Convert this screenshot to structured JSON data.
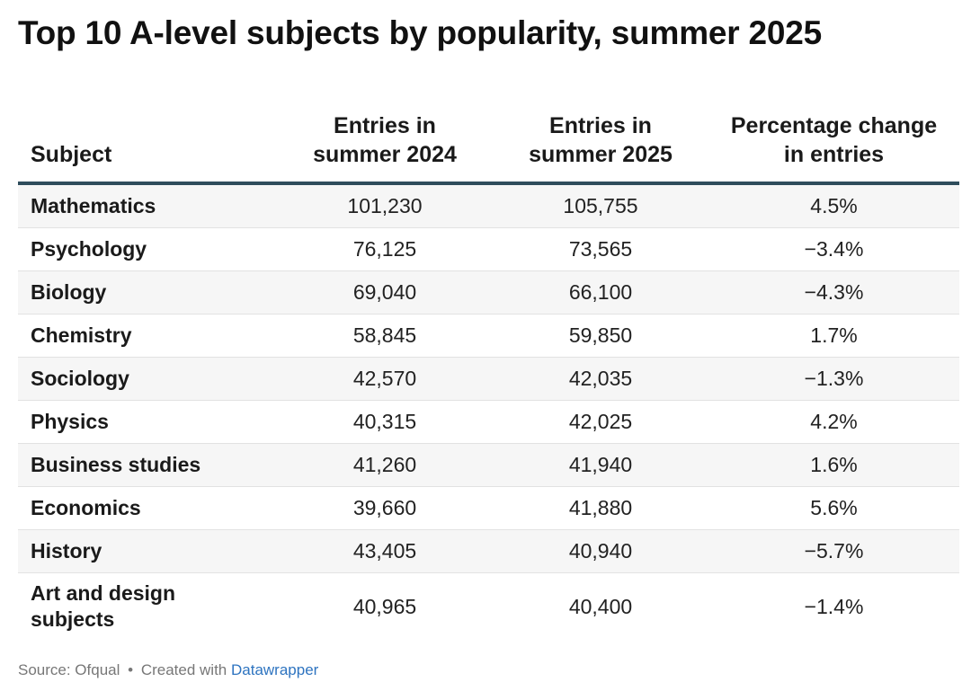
{
  "title": "Top 10 A-level subjects by popularity, summer 2025",
  "table": {
    "headers": {
      "subject": [
        "Subject"
      ],
      "entries_2024": [
        "Entries in",
        "summer 2024"
      ],
      "entries_2025": [
        "Entries in",
        "summer 2025"
      ],
      "change": [
        "Percentage change",
        "in entries"
      ]
    },
    "rows": [
      {
        "subject": [
          "Mathematics"
        ],
        "entries_2024": "101,230",
        "entries_2025": "105,755",
        "change": "4.5%"
      },
      {
        "subject": [
          "Psychology"
        ],
        "entries_2024": "76,125",
        "entries_2025": "73,565",
        "change": "−3.4%"
      },
      {
        "subject": [
          "Biology"
        ],
        "entries_2024": "69,040",
        "entries_2025": "66,100",
        "change": "−4.3%"
      },
      {
        "subject": [
          "Chemistry"
        ],
        "entries_2024": "58,845",
        "entries_2025": "59,850",
        "change": "1.7%"
      },
      {
        "subject": [
          "Sociology"
        ],
        "entries_2024": "42,570",
        "entries_2025": "42,035",
        "change": "−1.3%"
      },
      {
        "subject": [
          "Physics"
        ],
        "entries_2024": "40,315",
        "entries_2025": "42,025",
        "change": "4.2%"
      },
      {
        "subject": [
          "Business studies"
        ],
        "entries_2024": "41,260",
        "entries_2025": "41,940",
        "change": "1.6%"
      },
      {
        "subject": [
          "Economics"
        ],
        "entries_2024": "39,660",
        "entries_2025": "41,880",
        "change": "5.6%"
      },
      {
        "subject": [
          "History"
        ],
        "entries_2024": "43,405",
        "entries_2025": "40,940",
        "change": "−5.7%"
      },
      {
        "subject": [
          "Art and design",
          "subjects"
        ],
        "entries_2024": "40,965",
        "entries_2025": "40,400",
        "change": "−1.4%"
      }
    ]
  },
  "footer": {
    "source": "Source: Ofqual",
    "separator": "•",
    "created_with": "Created with",
    "link_label": "Datawrapper"
  },
  "colors": {
    "header_rule": "#2f4d5c",
    "stripe": "#f6f6f6",
    "link": "#2e74c0",
    "footer_text": "#777777"
  }
}
